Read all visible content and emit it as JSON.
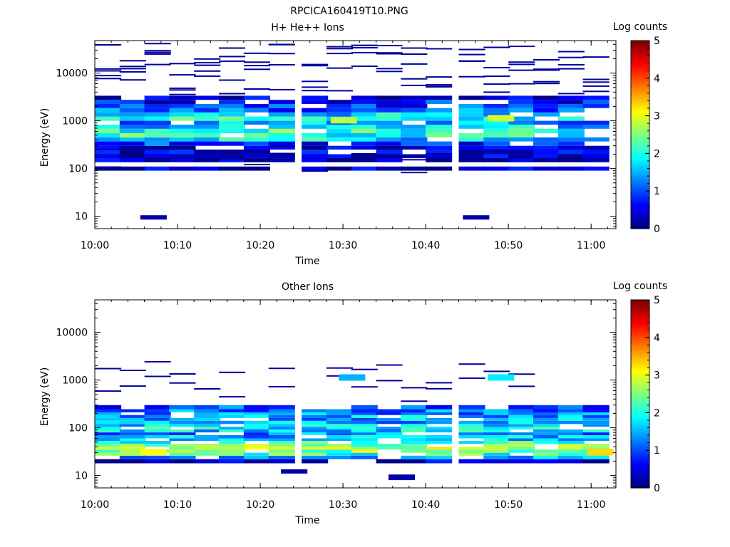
{
  "figure": {
    "title": "RPCICA160419T10.PNG"
  },
  "chart_data": [
    {
      "type": "heatmap",
      "title": "H+ He++ Ions",
      "xlabel": "Time",
      "ylabel": "Energy (eV)",
      "x_ticks": [
        "10:00",
        "10:10",
        "10:20",
        "10:30",
        "10:40",
        "10:50",
        "11:00"
      ],
      "y_ticks": [
        "10",
        "100",
        "1000",
        "10000"
      ],
      "y_scale": "log",
      "ylim": [
        5.5,
        48000
      ],
      "xlim": [
        "10:00",
        "11:03"
      ],
      "colorbar": {
        "label": "Log counts",
        "range": [
          0,
          5
        ],
        "ticks": [
          "0",
          "1",
          "2",
          "3",
          "4",
          "5"
        ],
        "colormap": "jet"
      },
      "time_bins": [
        "10:00",
        "10:03",
        "10:06",
        "10:09",
        "10:12",
        "10:15",
        "10:18",
        "10:21",
        "10:25",
        "10:28",
        "10:31",
        "10:34",
        "10:37",
        "10:40",
        "10:44",
        "10:47",
        "10:50",
        "10:53",
        "10:56",
        "10:59"
      ],
      "time_bin_minutes": 3.2,
      "energy_channels_eV": [
        18,
        22,
        27,
        33,
        40,
        50,
        60,
        75,
        90,
        110,
        135,
        165,
        200,
        250,
        300,
        370,
        450,
        550,
        680,
        830,
        1000,
        1230,
        1500,
        1850,
        2250,
        2750
      ],
      "band_profile_log_counts": [
        0,
        0,
        0,
        0,
        0,
        0,
        0,
        0,
        0.3,
        0,
        0.2,
        0.3,
        0.4,
        0.3,
        0.8,
        1.7,
        2.1,
        2.1,
        1.6,
        1.4,
        1.9,
        1.7,
        1.1,
        0.9,
        0.7,
        0.5
      ],
      "notable": {
        "bright_cells": [
          {
            "time": "10:30",
            "energy": 1000,
            "log_counts": 2.8
          },
          {
            "time": "10:49",
            "energy": 1100,
            "log_counts": 2.9
          }
        ],
        "low_energy_patches": [
          {
            "time": "10:07",
            "energy": [
              8.5,
              10.5
            ],
            "log_counts": 0.2
          },
          {
            "time": "10:46",
            "energy": [
              8.5,
              10.5
            ],
            "log_counts": 0.2
          }
        ]
      }
    },
    {
      "type": "heatmap",
      "title": "Other Ions",
      "xlabel": "Time",
      "ylabel": "Energy (eV)",
      "x_ticks": [
        "10:00",
        "10:10",
        "10:20",
        "10:30",
        "10:40",
        "10:50",
        "11:00"
      ],
      "y_ticks": [
        "10",
        "100",
        "1000",
        "10000"
      ],
      "y_scale": "log",
      "ylim": [
        5.5,
        48000
      ],
      "xlim": [
        "10:00",
        "11:03"
      ],
      "colorbar": {
        "label": "Log counts",
        "range": [
          0,
          5
        ],
        "ticks": [
          "0",
          "1",
          "2",
          "3",
          "4",
          "5"
        ],
        "colormap": "jet"
      },
      "time_bins": [
        "10:00",
        "10:03",
        "10:06",
        "10:09",
        "10:12",
        "10:15",
        "10:18",
        "10:21",
        "10:25",
        "10:28",
        "10:31",
        "10:34",
        "10:37",
        "10:40",
        "10:44",
        "10:47",
        "10:50",
        "10:53",
        "10:56",
        "10:59"
      ],
      "time_bin_minutes": 3.2,
      "energy_channels_eV": [
        18,
        22,
        26,
        30,
        35,
        40,
        46,
        53,
        60,
        70,
        80,
        92,
        105,
        120,
        140,
        160,
        185,
        210,
        245
      ],
      "band_profile_log_counts": [
        0.2,
        1.4,
        2.2,
        2.5,
        2.7,
        2.5,
        2.2,
        1.6,
        1.5,
        1.3,
        1.7,
        1.8,
        1.6,
        1.5,
        1.5,
        1.5,
        1.3,
        1.2,
        1.0
      ],
      "notable": {
        "bright_cells": [
          {
            "time": "10:07",
            "energy": 30,
            "log_counts": 3.1
          },
          {
            "time": "11:01",
            "energy": 30,
            "log_counts": 3.3
          },
          {
            "time": "10:31",
            "energy": 1100,
            "log_counts": 1.5
          },
          {
            "time": "10:49",
            "energy": 1100,
            "log_counts": 1.8
          }
        ],
        "low_energy_patches": [
          {
            "time": "10:24",
            "energy": [
              11,
              13.5
            ],
            "log_counts": 0.2
          },
          {
            "time": "10:37",
            "energy": [
              8,
              10.5
            ],
            "log_counts": 0.2
          }
        ]
      }
    }
  ]
}
